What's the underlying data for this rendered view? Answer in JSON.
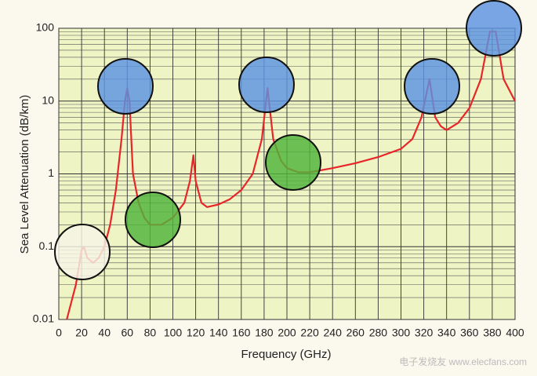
{
  "chart_data": {
    "type": "line",
    "x_label": "Frequency (GHz)",
    "y_label": "Sea Level Attenuation (dB/km)",
    "watermark": "电子发烧友 www.elecfans.com",
    "log_y": true,
    "grid": true,
    "minor_grid": true,
    "xlim": [
      0,
      400
    ],
    "ylim": [
      0.01,
      100
    ],
    "xticks": [
      0,
      20,
      40,
      60,
      80,
      100,
      120,
      140,
      160,
      180,
      200,
      220,
      240,
      260,
      280,
      300,
      320,
      340,
      360,
      380,
      400
    ],
    "yticks": [
      0.01,
      0.1,
      1,
      10,
      100
    ],
    "series": [
      {
        "color": "#e8262a",
        "x": [
          7,
          15,
          20,
          22,
          25,
          30,
          35,
          40,
          45,
          50,
          55,
          58,
          60,
          62,
          65,
          70,
          75,
          80,
          90,
          100,
          110,
          115,
          118,
          120,
          125,
          130,
          140,
          150,
          160,
          170,
          178,
          183,
          188,
          195,
          200,
          210,
          220,
          240,
          260,
          280,
          300,
          310,
          318,
          325,
          330,
          335,
          340,
          350,
          360,
          370,
          378,
          383,
          390,
          400
        ],
        "values": [
          0.01,
          0.03,
          0.09,
          0.1,
          0.07,
          0.06,
          0.07,
          0.1,
          0.2,
          0.6,
          3,
          10,
          15,
          10,
          1,
          0.4,
          0.25,
          0.2,
          0.2,
          0.25,
          0.4,
          0.8,
          1.8,
          0.8,
          0.4,
          0.35,
          0.38,
          0.45,
          0.6,
          1,
          3,
          15,
          3,
          1.5,
          1.2,
          1.05,
          1.05,
          1.2,
          1.4,
          1.7,
          2.2,
          3,
          6,
          20,
          6,
          4.5,
          4,
          5,
          8,
          20,
          90,
          90,
          20,
          10
        ]
      }
    ]
  }
}
